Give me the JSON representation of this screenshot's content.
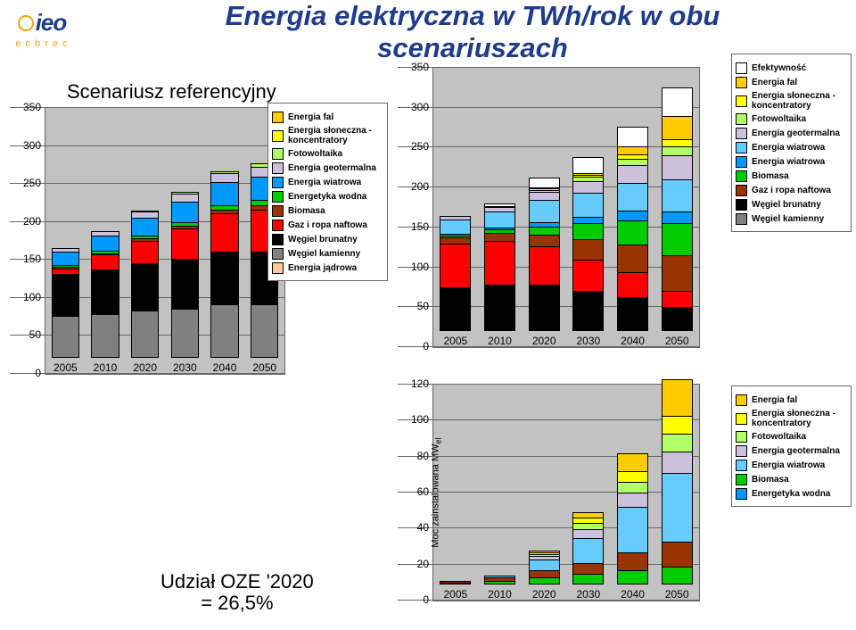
{
  "title": "Energia elektryczna w TWh/rok w obu scenariuszach",
  "subtitle_ref": "Scenariusz referencyjny",
  "footnote_line1": "Udział OZE '2020",
  "footnote_line2": "= 26,5%",
  "logo_top": "ieo",
  "logo_bottom": "e c  b r e c",
  "y_label_small": "Moc zainstalowana  MW",
  "y_label_sub": "el",
  "colors": {
    "efektywnosc": "#ffffff",
    "fal": "#ffcc00",
    "sloneczna": "#ffff00",
    "fotowoltaika": "#b3ff66",
    "geotermalna": "#ccc0da",
    "wiatrowa_a": "#66ccff",
    "wiatrowa_b": "#0099ff",
    "wodna": "#00cc00",
    "biomasa": "#993300",
    "gaz": "#ff0000",
    "brunatny": "#000000",
    "kamienny": "#808080",
    "jadrowa": "#ffcc99",
    "plot_bg": "#c2c2c2",
    "grid": "#666666"
  },
  "legend_left": [
    {
      "label": "Energia fal",
      "color": "#ffcc00"
    },
    {
      "label": "Energia słoneczna - koncentratory",
      "color": "#ffff00"
    },
    {
      "label": "Fotowoltaika",
      "color": "#b3ff66"
    },
    {
      "label": "Energia geotermalna",
      "color": "#ccc0da"
    },
    {
      "label": "Energia wiatrowa",
      "color": "#0099ff"
    },
    {
      "label": "Energetyka wodna",
      "color": "#00cc00"
    },
    {
      "label": "Biomasa",
      "color": "#993300"
    },
    {
      "label": "Gaz i ropa naftowa",
      "color": "#ff0000"
    },
    {
      "label": "Węgiel brunatny",
      "color": "#000000"
    },
    {
      "label": "Węgiel kamienny",
      "color": "#808080"
    },
    {
      "label": "Energia jądrowa",
      "color": "#ffcc99"
    }
  ],
  "legend_top_right": [
    {
      "label": "Efektywność",
      "color": "#ffffff"
    },
    {
      "label": "Energia fal",
      "color": "#ffcc00"
    },
    {
      "label": "Energia słoneczna - koncentratory",
      "color": "#ffff00"
    },
    {
      "label": "Fotowoltaika",
      "color": "#b3ff66"
    },
    {
      "label": "Energia geotermalna",
      "color": "#ccc0da"
    },
    {
      "label": "Energia wiatrowa",
      "color": "#66ccff"
    },
    {
      "label": "Energia wiatrowa",
      "color": "#0099ff"
    },
    {
      "label": "Biomasa",
      "color": "#00cc00"
    },
    {
      "label": "Gaz i ropa naftowa",
      "color": "#993300"
    },
    {
      "label": "Węgiel brunatny",
      "color": "#000000"
    },
    {
      "label": "Węgiel kamienny",
      "color": "#808080"
    }
  ],
  "legend_bot_right": [
    {
      "label": "Energia fal",
      "color": "#ffcc00"
    },
    {
      "label": "Energia słoneczna - koncentratory",
      "color": "#ffff00"
    },
    {
      "label": "Fotowoltaika",
      "color": "#b3ff66"
    },
    {
      "label": "Energia geotermalna",
      "color": "#ccc0da"
    },
    {
      "label": "Energia wiatrowa",
      "color": "#66ccff"
    },
    {
      "label": "Biomasa",
      "color": "#00cc00"
    },
    {
      "label": "Energetyka wodna",
      "color": "#0099ff"
    }
  ],
  "chart_ref": {
    "ymax": 350,
    "ystep": 50,
    "categories": [
      "2005",
      "2010",
      "2020",
      "2030",
      "2040",
      "2050"
    ],
    "series_order": [
      "kamienny",
      "brunatny",
      "gaz",
      "biomasa",
      "wodna",
      "wiatrowa_b",
      "geotermalna",
      "fotowoltaika",
      "sloneczna",
      "fal",
      "jadrowa"
    ],
    "stacks": [
      {
        "kamienny": 55,
        "brunatny": 55,
        "gaz": 8,
        "biomasa": 2,
        "wodna": 2,
        "wiatrowa_b": 18,
        "geotermalna": 4,
        "fotowoltaika": 0,
        "sloneczna": 0,
        "fal": 0,
        "jadrowa": 0
      },
      {
        "kamienny": 58,
        "brunatny": 58,
        "gaz": 20,
        "biomasa": 2,
        "wodna": 3,
        "wiatrowa_b": 20,
        "geotermalna": 6,
        "fotowoltaika": 0,
        "sloneczna": 0,
        "fal": 0,
        "jadrowa": 0
      },
      {
        "kamienny": 62,
        "brunatny": 62,
        "gaz": 30,
        "biomasa": 3,
        "wodna": 4,
        "wiatrowa_b": 24,
        "geotermalna": 8,
        "fotowoltaika": 1,
        "sloneczna": 0,
        "fal": 0,
        "jadrowa": 0
      },
      {
        "kamienny": 65,
        "brunatny": 65,
        "gaz": 40,
        "biomasa": 4,
        "wodna": 5,
        "wiatrowa_b": 27,
        "geotermalna": 10,
        "fotowoltaika": 2,
        "sloneczna": 0,
        "fal": 0,
        "jadrowa": 0
      },
      {
        "kamienny": 70,
        "brunatny": 70,
        "gaz": 50,
        "biomasa": 5,
        "wodna": 6,
        "wiatrowa_b": 30,
        "geotermalna": 12,
        "fotowoltaika": 3,
        "sloneczna": 0,
        "fal": 0,
        "jadrowa": 0
      },
      {
        "kamienny": 70,
        "brunatny": 70,
        "gaz": 55,
        "biomasa": 6,
        "wodna": 7,
        "wiatrowa_b": 30,
        "geotermalna": 14,
        "fotowoltaika": 4,
        "sloneczna": 0,
        "fal": 0,
        "jadrowa": 0
      }
    ]
  },
  "chart_scen": {
    "ymax": 350,
    "ystep": 50,
    "categories": [
      "2005",
      "2010",
      "2020",
      "2030",
      "2040",
      "2050"
    ],
    "series_order": [
      "kamienny",
      "brunatny",
      "gaz",
      "biomasa",
      "wodna",
      "wiatrowa_b",
      "wiatrowa_a",
      "geotermalna",
      "fotowoltaika",
      "sloneczna",
      "fal",
      "efektywnosc"
    ],
    "stacks": [
      {
        "kamienny": 0,
        "brunatny": 55,
        "gaz": 55,
        "biomasa": 8,
        "wodna": 2,
        "wiatrowa_b": 2,
        "wiatrowa_a": 18,
        "geotermalna": 4,
        "fotowoltaika": 0,
        "sloneczna": 0,
        "fal": 0,
        "efektywnosc": 0
      },
      {
        "kamienny": 0,
        "brunatny": 58,
        "gaz": 55,
        "biomasa": 10,
        "wodna": 4,
        "wiatrowa_b": 3,
        "wiatrowa_a": 20,
        "geotermalna": 6,
        "fotowoltaika": 1,
        "sloneczna": 0,
        "fal": 0,
        "efektywnosc": 3
      },
      {
        "kamienny": 0,
        "brunatny": 58,
        "gaz": 48,
        "biomasa": 15,
        "wodna": 10,
        "wiatrowa_b": 5,
        "wiatrowa_a": 28,
        "geotermalna": 10,
        "fotowoltaika": 3,
        "sloneczna": 2,
        "fal": 1,
        "efektywnosc": 12
      },
      {
        "kamienny": 0,
        "brunatny": 50,
        "gaz": 40,
        "biomasa": 25,
        "wodna": 20,
        "wiatrowa_b": 8,
        "wiatrowa_a": 30,
        "geotermalna": 15,
        "fotowoltaika": 5,
        "sloneczna": 3,
        "fal": 2,
        "efektywnosc": 20
      },
      {
        "kamienny": 0,
        "brunatny": 42,
        "gaz": 32,
        "biomasa": 35,
        "wodna": 30,
        "wiatrowa_b": 12,
        "wiatrowa_a": 35,
        "geotermalna": 22,
        "fotowoltaika": 8,
        "sloneczna": 5,
        "fal": 10,
        "efektywnosc": 25
      },
      {
        "kamienny": 0,
        "brunatny": 30,
        "gaz": 20,
        "biomasa": 45,
        "wodna": 40,
        "wiatrowa_b": 15,
        "wiatrowa_a": 40,
        "geotermalna": 30,
        "fotowoltaika": 12,
        "sloneczna": 8,
        "fal": 30,
        "efektywnosc": 35
      }
    ]
  },
  "chart_mw": {
    "ymax": 120,
    "ystep": 20,
    "categories": [
      "2005",
      "2010",
      "2020",
      "2030",
      "2040",
      "2050"
    ],
    "series_order": [
      "wodna",
      "biomasa",
      "wiatrowa_a",
      "geotermalna",
      "fotowoltaika",
      "sloneczna",
      "fal"
    ],
    "stacks": [
      {
        "wodna": 1,
        "biomasa": 1,
        "wiatrowa_a": 0,
        "geotermalna": 0,
        "fotowoltaika": 0,
        "sloneczna": 0,
        "fal": 0
      },
      {
        "wodna": 2,
        "biomasa": 2,
        "wiatrowa_a": 1,
        "geotermalna": 0,
        "fotowoltaika": 0,
        "sloneczna": 0,
        "fal": 0
      },
      {
        "wodna": 4,
        "biomasa": 4,
        "wiatrowa_a": 6,
        "geotermalna": 2,
        "fotowoltaika": 1,
        "sloneczna": 1,
        "fal": 1
      },
      {
        "wodna": 6,
        "biomasa": 6,
        "wiatrowa_a": 14,
        "geotermalna": 5,
        "fotowoltaika": 3,
        "sloneczna": 3,
        "fal": 3
      },
      {
        "wodna": 8,
        "biomasa": 10,
        "wiatrowa_a": 25,
        "geotermalna": 8,
        "fotowoltaika": 6,
        "sloneczna": 6,
        "fal": 10
      },
      {
        "wodna": 10,
        "biomasa": 14,
        "wiatrowa_a": 38,
        "geotermalna": 12,
        "fotowoltaika": 10,
        "sloneczna": 10,
        "fal": 20
      }
    ]
  }
}
